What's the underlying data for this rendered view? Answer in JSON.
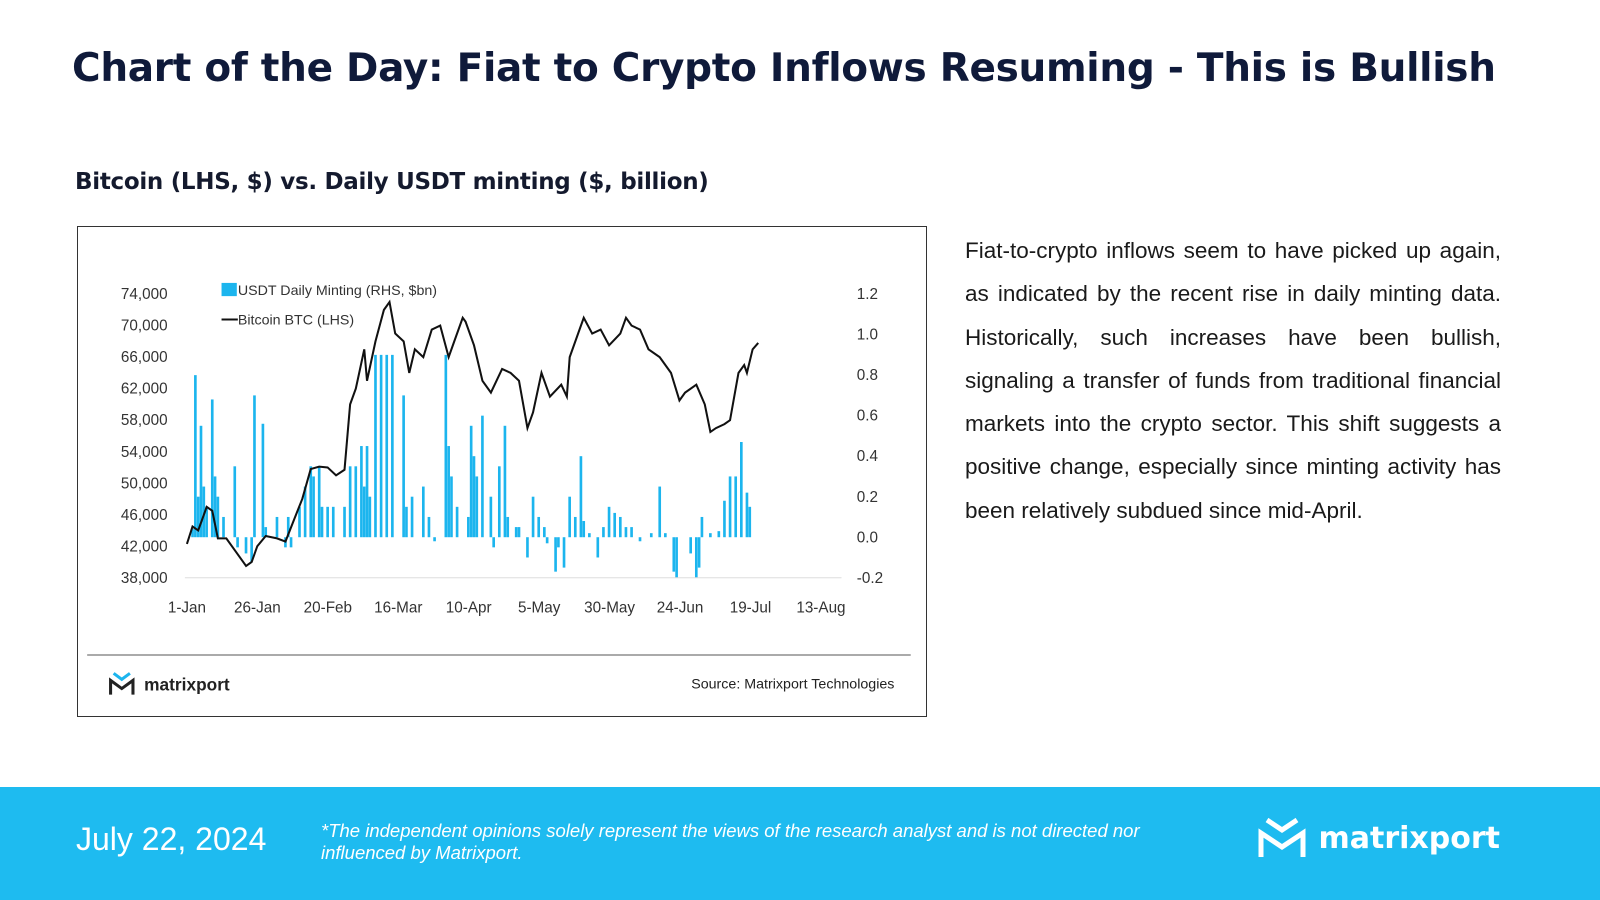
{
  "header": {
    "title": "Chart of the Day: Fiat to Crypto Inflows Resuming - This is Bullish",
    "subtitle": "Bitcoin (LHS, $) vs. Daily USDT minting ($, billion)"
  },
  "chart_data": {
    "type": "bar+line",
    "legend_placement": "top-left",
    "grid": false,
    "x_tick_labels": [
      "1-Jan",
      "26-Jan",
      "20-Feb",
      "16-Mar",
      "10-Apr",
      "5-May",
      "30-May",
      "24-Jun",
      "19-Jul",
      "13-Aug"
    ],
    "x_range": [
      "2024-01-01",
      "2024-08-13"
    ],
    "y_left": {
      "ticks": [
        "74,000",
        "70,000",
        "66,000",
        "62,000",
        "58,000",
        "54,000",
        "50,000",
        "46,000",
        "42,000",
        "38,000"
      ],
      "range": [
        38000,
        74000
      ]
    },
    "y_right": {
      "ticks": [
        "1.2",
        "1.0",
        "0.8",
        "0.6",
        "0.4",
        "0.2",
        "0.0",
        "-0.2"
      ],
      "range": [
        -0.2,
        1.2
      ]
    },
    "series": [
      {
        "name": "USDT Daily Minting (RHS, $bn)",
        "kind": "bar",
        "axis": "right",
        "color": "#1cb5ee",
        "points": [
          [
            "2024-01-03",
            0.04
          ],
          [
            "2024-01-04",
            0.8
          ],
          [
            "2024-01-05",
            0.2
          ],
          [
            "2024-01-06",
            0.55
          ],
          [
            "2024-01-07",
            0.25
          ],
          [
            "2024-01-08",
            0.15
          ],
          [
            "2024-01-10",
            0.68
          ],
          [
            "2024-01-11",
            0.3
          ],
          [
            "2024-01-12",
            0.2
          ],
          [
            "2024-01-14",
            0.1
          ],
          [
            "2024-01-18",
            0.35
          ],
          [
            "2024-01-19",
            -0.05
          ],
          [
            "2024-01-22",
            -0.08
          ],
          [
            "2024-01-24",
            -0.12
          ],
          [
            "2024-01-25",
            0.7
          ],
          [
            "2024-01-28",
            0.56
          ],
          [
            "2024-01-29",
            0.05
          ],
          [
            "2024-02-02",
            0.1
          ],
          [
            "2024-02-05",
            -0.05
          ],
          [
            "2024-02-06",
            0.1
          ],
          [
            "2024-02-07",
            -0.05
          ],
          [
            "2024-02-10",
            0.15
          ],
          [
            "2024-02-12",
            0.25
          ],
          [
            "2024-02-14",
            0.35
          ],
          [
            "2024-02-15",
            0.3
          ],
          [
            "2024-02-17",
            0.35
          ],
          [
            "2024-02-18",
            0.15
          ],
          [
            "2024-02-20",
            0.15
          ],
          [
            "2024-02-22",
            0.15
          ],
          [
            "2024-02-26",
            0.15
          ],
          [
            "2024-02-28",
            0.35
          ],
          [
            "2024-03-01",
            0.35
          ],
          [
            "2024-03-03",
            0.45
          ],
          [
            "2024-03-04",
            0.25
          ],
          [
            "2024-03-05",
            0.45
          ],
          [
            "2024-03-06",
            0.2
          ],
          [
            "2024-03-08",
            0.9
          ],
          [
            "2024-03-10",
            0.9
          ],
          [
            "2024-03-12",
            0.9
          ],
          [
            "2024-03-14",
            0.9
          ],
          [
            "2024-03-18",
            0.7
          ],
          [
            "2024-03-19",
            0.15
          ],
          [
            "2024-03-21",
            0.2
          ],
          [
            "2024-03-25",
            0.25
          ],
          [
            "2024-03-27",
            0.1
          ],
          [
            "2024-03-29",
            -0.02
          ],
          [
            "2024-04-02",
            0.9
          ],
          [
            "2024-04-03",
            0.45
          ],
          [
            "2024-04-04",
            0.3
          ],
          [
            "2024-04-06",
            0.15
          ],
          [
            "2024-04-10",
            0.1
          ],
          [
            "2024-04-11",
            0.55
          ],
          [
            "2024-04-12",
            0.4
          ],
          [
            "2024-04-13",
            0.3
          ],
          [
            "2024-04-15",
            0.6
          ],
          [
            "2024-04-18",
            0.2
          ],
          [
            "2024-04-19",
            -0.05
          ],
          [
            "2024-04-21",
            0.35
          ],
          [
            "2024-04-23",
            0.55
          ],
          [
            "2024-04-24",
            0.1
          ],
          [
            "2024-04-27",
            0.05
          ],
          [
            "2024-04-28",
            0.05
          ],
          [
            "2024-05-01",
            -0.1
          ],
          [
            "2024-05-03",
            0.2
          ],
          [
            "2024-05-05",
            0.1
          ],
          [
            "2024-05-07",
            0.05
          ],
          [
            "2024-05-08",
            -0.03
          ],
          [
            "2024-05-11",
            -0.17
          ],
          [
            "2024-05-12",
            -0.05
          ],
          [
            "2024-05-14",
            -0.15
          ],
          [
            "2024-05-16",
            0.2
          ],
          [
            "2024-05-18",
            0.1
          ],
          [
            "2024-05-20",
            0.4
          ],
          [
            "2024-05-21",
            0.08
          ],
          [
            "2024-05-23",
            0.02
          ],
          [
            "2024-05-26",
            -0.1
          ],
          [
            "2024-05-28",
            0.05
          ],
          [
            "2024-05-30",
            0.15
          ],
          [
            "2024-06-01",
            0.12
          ],
          [
            "2024-06-03",
            0.1
          ],
          [
            "2024-06-05",
            0.05
          ],
          [
            "2024-06-07",
            0.05
          ],
          [
            "2024-06-10",
            -0.02
          ],
          [
            "2024-06-14",
            0.02
          ],
          [
            "2024-06-17",
            0.25
          ],
          [
            "2024-06-19",
            0.02
          ],
          [
            "2024-06-22",
            -0.17
          ],
          [
            "2024-06-23",
            -0.2
          ],
          [
            "2024-06-28",
            -0.08
          ],
          [
            "2024-06-30",
            -0.2
          ],
          [
            "2024-07-01",
            -0.15
          ],
          [
            "2024-07-02",
            0.1
          ],
          [
            "2024-07-05",
            0.02
          ],
          [
            "2024-07-08",
            0.03
          ],
          [
            "2024-07-10",
            0.18
          ],
          [
            "2024-07-12",
            0.3
          ],
          [
            "2024-07-14",
            0.3
          ],
          [
            "2024-07-16",
            0.47
          ],
          [
            "2024-07-18",
            0.22
          ],
          [
            "2024-07-19",
            0.15
          ]
        ]
      },
      {
        "name": "Bitcoin BTC (LHS)",
        "kind": "line",
        "axis": "left",
        "color": "#111111",
        "points": [
          [
            "2024-01-01",
            42300
          ],
          [
            "2024-01-03",
            44500
          ],
          [
            "2024-01-05",
            44000
          ],
          [
            "2024-01-08",
            47000
          ],
          [
            "2024-01-10",
            46500
          ],
          [
            "2024-01-12",
            43000
          ],
          [
            "2024-01-15",
            43000
          ],
          [
            "2024-01-18",
            41500
          ],
          [
            "2024-01-22",
            39500
          ],
          [
            "2024-01-24",
            40000
          ],
          [
            "2024-01-26",
            42000
          ],
          [
            "2024-01-29",
            43300
          ],
          [
            "2024-02-02",
            43000
          ],
          [
            "2024-02-05",
            42600
          ],
          [
            "2024-02-08",
            45300
          ],
          [
            "2024-02-11",
            48000
          ],
          [
            "2024-02-14",
            51800
          ],
          [
            "2024-02-17",
            52100
          ],
          [
            "2024-02-20",
            52000
          ],
          [
            "2024-02-23",
            51000
          ],
          [
            "2024-02-26",
            51700
          ],
          [
            "2024-02-28",
            60000
          ],
          [
            "2024-03-01",
            62000
          ],
          [
            "2024-03-04",
            67000
          ],
          [
            "2024-03-05",
            63000
          ],
          [
            "2024-03-08",
            68000
          ],
          [
            "2024-03-11",
            72000
          ],
          [
            "2024-03-13",
            73000
          ],
          [
            "2024-03-15",
            69000
          ],
          [
            "2024-03-18",
            68000
          ],
          [
            "2024-03-20",
            64000
          ],
          [
            "2024-03-22",
            67000
          ],
          [
            "2024-03-25",
            66000
          ],
          [
            "2024-03-28",
            69500
          ],
          [
            "2024-03-31",
            70000
          ],
          [
            "2024-04-03",
            66000
          ],
          [
            "2024-04-05",
            68000
          ],
          [
            "2024-04-08",
            71000
          ],
          [
            "2024-04-09",
            70500
          ],
          [
            "2024-04-12",
            67500
          ],
          [
            "2024-04-15",
            63000
          ],
          [
            "2024-04-18",
            61500
          ],
          [
            "2024-04-22",
            64500
          ],
          [
            "2024-04-25",
            64000
          ],
          [
            "2024-04-28",
            63000
          ],
          [
            "2024-05-01",
            57000
          ],
          [
            "2024-05-03",
            59000
          ],
          [
            "2024-05-06",
            64000
          ],
          [
            "2024-05-09",
            61000
          ],
          [
            "2024-05-13",
            62500
          ],
          [
            "2024-05-15",
            61000
          ],
          [
            "2024-05-16",
            66000
          ],
          [
            "2024-05-21",
            71000
          ],
          [
            "2024-05-24",
            69000
          ],
          [
            "2024-05-27",
            69500
          ],
          [
            "2024-05-30",
            67500
          ],
          [
            "2024-06-03",
            69000
          ],
          [
            "2024-06-05",
            71000
          ],
          [
            "2024-06-07",
            70000
          ],
          [
            "2024-06-10",
            69500
          ],
          [
            "2024-06-13",
            67000
          ],
          [
            "2024-06-17",
            66000
          ],
          [
            "2024-06-21",
            64000
          ],
          [
            "2024-06-24",
            60500
          ],
          [
            "2024-06-26",
            61500
          ],
          [
            "2024-06-30",
            62500
          ],
          [
            "2024-07-03",
            60000
          ],
          [
            "2024-07-05",
            56500
          ],
          [
            "2024-07-07",
            57000
          ],
          [
            "2024-07-10",
            57500
          ],
          [
            "2024-07-12",
            58000
          ],
          [
            "2024-07-15",
            64000
          ],
          [
            "2024-07-17",
            65000
          ],
          [
            "2024-07-18",
            64000
          ],
          [
            "2024-07-20",
            67000
          ],
          [
            "2024-07-22",
            67800
          ]
        ]
      }
    ],
    "logo_text": "matrixport",
    "source": "Source: Matrixport Technologies"
  },
  "body": {
    "paragraph": "Fiat-to-crypto inflows seem to have picked up again, as indicated by the recent rise in daily minting data. Historically, such increases have been bullish, signaling a transfer of funds from traditional financial markets into the crypto sector. This shift suggests a positive change, especially since minting activity has been relatively subdued since mid-April."
  },
  "footer": {
    "date": "July 22, 2024",
    "disclaimer": "*The independent opinions solely represent the views of the research analyst and is not directed nor influenced by Matrixport.",
    "brand": "matrixport",
    "background": "#1ebbf0"
  }
}
